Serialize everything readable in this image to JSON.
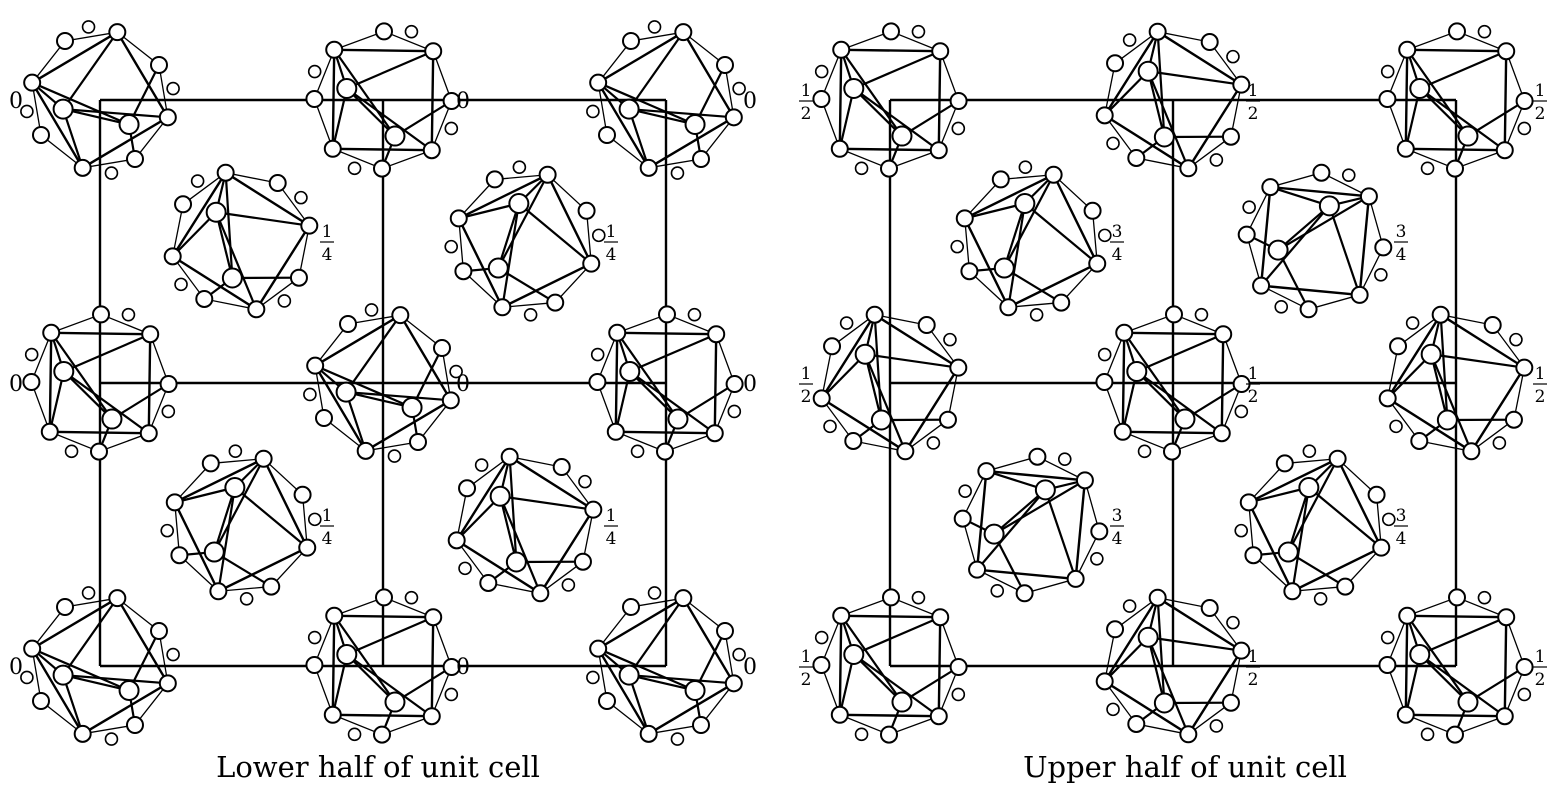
{
  "figure": {
    "left_panel": {
      "caption": "Lower half of unit cell",
      "corner_heights": [
        "0",
        "0",
        "0",
        "0",
        "0",
        "0",
        "0",
        "0",
        "0"
      ],
      "center_heights": [
        "1/4",
        "1/4",
        "1/4",
        "1/4"
      ]
    },
    "right_panel": {
      "caption": "Upper half of unit cell",
      "corner_heights": [
        "1/2",
        "1/2",
        "1/2",
        "1/2",
        "1/2",
        "1/2",
        "1/2",
        "1/2",
        "1/2"
      ],
      "center_heights": [
        "3/4",
        "3/4",
        "3/4",
        "3/4"
      ]
    }
  },
  "colors": {
    "stroke": "#000000",
    "background": "#ffffff"
  },
  "icons": {
    "cluster": "polyhedron-cluster-icon",
    "atom": "atom-circle-icon"
  }
}
